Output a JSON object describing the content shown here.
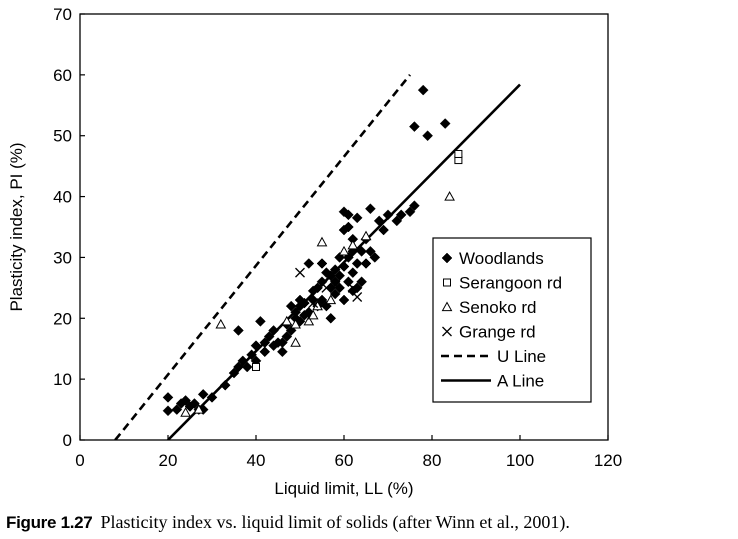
{
  "caption": {
    "label": "Figure 1.27",
    "text": "Plasticity index vs. liquid limit of solids (after Winn et al., 2001)."
  },
  "chart_data": {
    "type": "scatter",
    "title": "",
    "xlabel": "Liquid limit, LL (%)",
    "ylabel": "Plasticity index, PI (%)",
    "xlim": [
      0,
      120
    ],
    "ylim": [
      0,
      70
    ],
    "xticks": [
      0,
      20,
      40,
      60,
      80,
      100,
      120
    ],
    "yticks": [
      0,
      10,
      20,
      30,
      40,
      50,
      60,
      70
    ],
    "grid": false,
    "legend_position": "right",
    "series": [
      {
        "name": "Woodlands",
        "marker": "diamond-filled",
        "points": [
          [
            20,
            4.8
          ],
          [
            20,
            7
          ],
          [
            22,
            5
          ],
          [
            23,
            6
          ],
          [
            24,
            6.5
          ],
          [
            25,
            5.5
          ],
          [
            26,
            6
          ],
          [
            27,
            5
          ],
          [
            28,
            7.5
          ],
          [
            28,
            5
          ],
          [
            30,
            7
          ],
          [
            33,
            9
          ],
          [
            35,
            11
          ],
          [
            36,
            12
          ],
          [
            36,
            18
          ],
          [
            37,
            13
          ],
          [
            38,
            12
          ],
          [
            39,
            14
          ],
          [
            40,
            13
          ],
          [
            40,
            15.5
          ],
          [
            41,
            19.5
          ],
          [
            42,
            16
          ],
          [
            42,
            14.5
          ],
          [
            43,
            17
          ],
          [
            44,
            15.5
          ],
          [
            44,
            18
          ],
          [
            45,
            16
          ],
          [
            46,
            16
          ],
          [
            46,
            14.5
          ],
          [
            47,
            17
          ],
          [
            47,
            19
          ],
          [
            48,
            18
          ],
          [
            48,
            22
          ],
          [
            49,
            20
          ],
          [
            49,
            21
          ],
          [
            50,
            22
          ],
          [
            50,
            19.5
          ],
          [
            50,
            23
          ],
          [
            51,
            22.5
          ],
          [
            51,
            20.5
          ],
          [
            52,
            21
          ],
          [
            52,
            29
          ],
          [
            53,
            23
          ],
          [
            53,
            24.5
          ],
          [
            54,
            22
          ],
          [
            54,
            25
          ],
          [
            55,
            26
          ],
          [
            55,
            23
          ],
          [
            55,
            29
          ],
          [
            56,
            22
          ],
          [
            56,
            27.5
          ],
          [
            57,
            25
          ],
          [
            57,
            20
          ],
          [
            57,
            27
          ],
          [
            58,
            26
          ],
          [
            58,
            24
          ],
          [
            58,
            28
          ],
          [
            59,
            27
          ],
          [
            59,
            25
          ],
          [
            59,
            30
          ],
          [
            60,
            23
          ],
          [
            60,
            28.5
          ],
          [
            60,
            34.5
          ],
          [
            60,
            37.5
          ],
          [
            61,
            30
          ],
          [
            61,
            26
          ],
          [
            61,
            35
          ],
          [
            61,
            37
          ],
          [
            62,
            31
          ],
          [
            62,
            27.5
          ],
          [
            62,
            24.5
          ],
          [
            62,
            33
          ],
          [
            63,
            25
          ],
          [
            63,
            29
          ],
          [
            63,
            36.5
          ],
          [
            64,
            31
          ],
          [
            64,
            26
          ],
          [
            65,
            33
          ],
          [
            65,
            29
          ],
          [
            66,
            31
          ],
          [
            66,
            38
          ],
          [
            67,
            30
          ],
          [
            68,
            36
          ],
          [
            69,
            34.5
          ],
          [
            70,
            37
          ],
          [
            72,
            36
          ],
          [
            73,
            37
          ],
          [
            75,
            37.5
          ],
          [
            76,
            38.5
          ],
          [
            76,
            51.5
          ],
          [
            78,
            57.5
          ],
          [
            79,
            50
          ],
          [
            83,
            52
          ]
        ]
      },
      {
        "name": "Serangoon rd",
        "marker": "square-open",
        "points": [
          [
            40,
            12
          ],
          [
            86,
            46
          ],
          [
            86,
            47
          ]
        ]
      },
      {
        "name": "Senoko rd",
        "marker": "triangle-open",
        "points": [
          [
            24,
            4.5
          ],
          [
            27,
            5
          ],
          [
            32,
            19
          ],
          [
            47,
            19.5
          ],
          [
            49,
            16
          ],
          [
            49,
            19
          ],
          [
            52,
            19.5
          ],
          [
            53,
            20.5
          ],
          [
            54,
            22
          ],
          [
            55,
            32.5
          ],
          [
            57,
            23
          ],
          [
            60,
            31
          ],
          [
            62,
            32
          ],
          [
            65,
            33.5
          ],
          [
            84,
            40
          ]
        ]
      },
      {
        "name": "Grange rd",
        "marker": "x",
        "points": [
          [
            50,
            27.5
          ],
          [
            53,
            22.5
          ],
          [
            56,
            25
          ],
          [
            58,
            25.5
          ],
          [
            62,
            25
          ],
          [
            63,
            23.5
          ]
        ]
      }
    ],
    "lines": [
      {
        "name": "U Line",
        "style": "dashed",
        "from": [
          8,
          0
        ],
        "to": [
          75,
          60
        ]
      },
      {
        "name": "A Line",
        "style": "solid",
        "from": [
          20,
          0
        ],
        "to": [
          100,
          58.4
        ]
      }
    ]
  }
}
